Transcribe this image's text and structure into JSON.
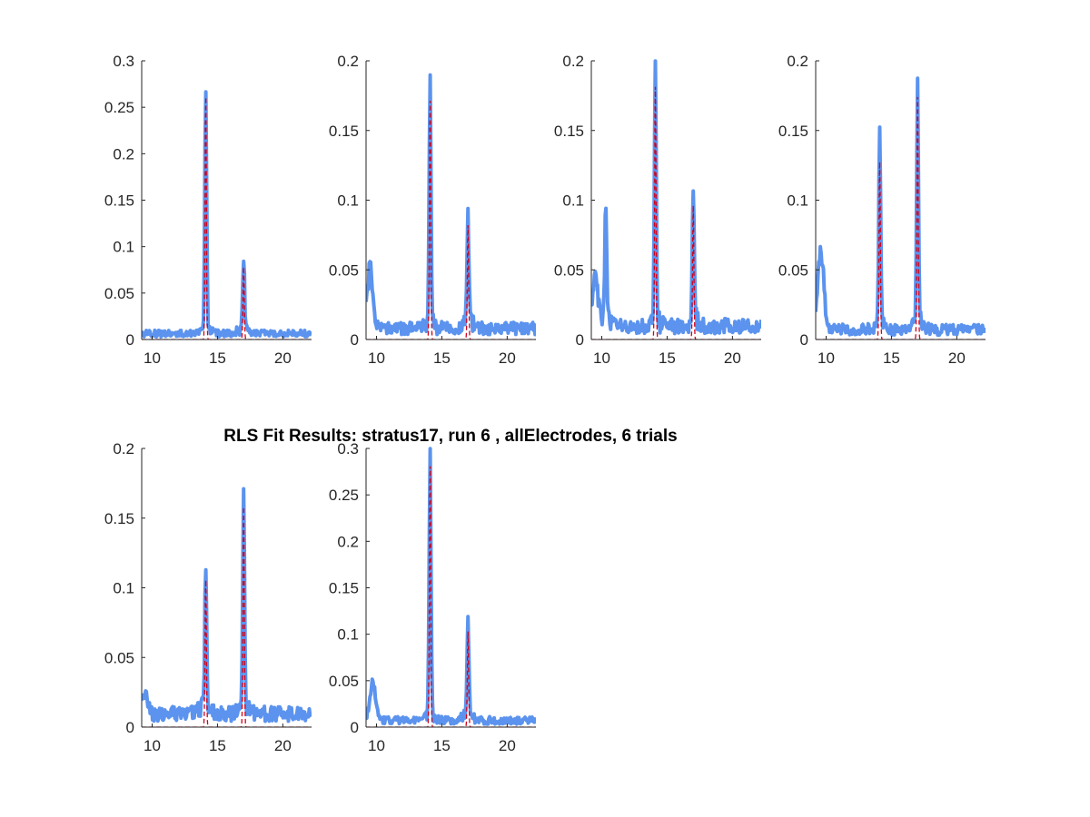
{
  "figure": {
    "title": "RLS Fit Results: stratus17, run 6 , allElectrodes, 6 trials"
  },
  "colors": {
    "measured": "#5b93ee",
    "fit": "#d0021b",
    "axis": "#262626"
  },
  "chart_data": [
    {
      "type": "line",
      "xlim": [
        9.2,
        22.2
      ],
      "ylim": [
        0,
        0.3
      ],
      "xticks": [
        10,
        15,
        20
      ],
      "xtick_labels": [
        "10",
        "15",
        "20"
      ],
      "yticks": [
        0,
        0.05,
        0.1,
        0.15,
        0.2,
        0.25,
        0.3
      ],
      "ytick_labels": [
        "0",
        "0.05",
        "0.1",
        "0.15",
        "0.2",
        "0.25",
        "0.3"
      ],
      "peaks": [
        {
          "x": 14.1,
          "y": 0.258
        },
        {
          "x": 17.0,
          "y": 0.076
        }
      ],
      "fit_peaks": [
        {
          "x": 14.1,
          "y": 0.262
        },
        {
          "x": 17.0,
          "y": 0.078
        }
      ],
      "noise_level": 0.008,
      "low_freq_bump": null,
      "grid": false
    },
    {
      "type": "line",
      "xlim": [
        9.2,
        22.2
      ],
      "ylim": [
        0,
        0.2
      ],
      "xticks": [
        10,
        15,
        20
      ],
      "xtick_labels": [
        "10",
        "15",
        "20"
      ],
      "yticks": [
        0,
        0.05,
        0.1,
        0.15,
        0.2
      ],
      "ytick_labels": [
        "0",
        "0.05",
        "0.1",
        "0.15",
        "0.2"
      ],
      "peaks": [
        {
          "x": 14.1,
          "y": 0.169
        },
        {
          "x": 17.0,
          "y": 0.079
        }
      ],
      "fit_peaks": [
        {
          "x": 14.1,
          "y": 0.172
        },
        {
          "x": 17.0,
          "y": 0.082
        }
      ],
      "noise_level": 0.01,
      "low_freq_bump": {
        "x": 9.5,
        "y": 0.047
      },
      "grid": false
    },
    {
      "type": "line",
      "xlim": [
        9.2,
        22.2
      ],
      "ylim": [
        0,
        0.2
      ],
      "xticks": [
        10,
        15,
        20
      ],
      "xtick_labels": [
        "10",
        "15",
        "20"
      ],
      "yticks": [
        0,
        0.05,
        0.1,
        0.15,
        0.2
      ],
      "ytick_labels": [
        "0",
        "0.05",
        "0.1",
        "0.15",
        "0.2"
      ],
      "peaks": [
        {
          "x": 10.3,
          "y": 0.086
        },
        {
          "x": 14.1,
          "y": 0.178
        },
        {
          "x": 17.0,
          "y": 0.095
        }
      ],
      "fit_peaks": [
        {
          "x": 14.1,
          "y": 0.182
        },
        {
          "x": 17.0,
          "y": 0.096
        }
      ],
      "noise_level": 0.012,
      "low_freq_bump": {
        "x": 9.5,
        "y": 0.04
      },
      "grid": false
    },
    {
      "type": "line",
      "xlim": [
        9.2,
        22.2
      ],
      "ylim": [
        0,
        0.2
      ],
      "xticks": [
        10,
        15,
        20
      ],
      "xtick_labels": [
        "10",
        "15",
        "20"
      ],
      "yticks": [
        0,
        0.05,
        0.1,
        0.15,
        0.2
      ],
      "ytick_labels": [
        "0",
        "0.05",
        "0.1",
        "0.15",
        "0.2"
      ],
      "peaks": [
        {
          "x": 14.1,
          "y": 0.136
        },
        {
          "x": 17.0,
          "y": 0.171
        }
      ],
      "fit_peaks": [
        {
          "x": 14.1,
          "y": 0.128
        },
        {
          "x": 17.0,
          "y": 0.174
        }
      ],
      "noise_level": 0.009,
      "low_freq_bump": {
        "x": 9.6,
        "y": 0.066
      },
      "grid": false
    },
    {
      "type": "line",
      "xlim": [
        9.2,
        22.2
      ],
      "ylim": [
        0,
        0.2
      ],
      "xticks": [
        10,
        15,
        20
      ],
      "xtick_labels": [
        "10",
        "15",
        "20"
      ],
      "yticks": [
        0,
        0.05,
        0.1,
        0.15,
        0.2
      ],
      "ytick_labels": [
        "0",
        "0.05",
        "0.1",
        "0.15",
        "0.2"
      ],
      "peaks": [
        {
          "x": 14.1,
          "y": 0.103
        },
        {
          "x": 17.0,
          "y": 0.156
        }
      ],
      "fit_peaks": [
        {
          "x": 14.1,
          "y": 0.106
        },
        {
          "x": 17.0,
          "y": 0.158
        }
      ],
      "noise_level": 0.012,
      "low_freq_bump": {
        "x": 9.4,
        "y": 0.016
      },
      "grid": false
    },
    {
      "type": "line",
      "xlim": [
        9.2,
        22.2
      ],
      "ylim": [
        0,
        0.3
      ],
      "xticks": [
        10,
        15,
        20
      ],
      "xtick_labels": [
        "10",
        "15",
        "20"
      ],
      "yticks": [
        0,
        0.05,
        0.1,
        0.15,
        0.2,
        0.25,
        0.3
      ],
      "ytick_labels": [
        "0",
        "0.05",
        "0.1",
        "0.15",
        "0.2",
        "0.25",
        "0.3"
      ],
      "peaks": [
        {
          "x": 14.1,
          "y": 0.279
        },
        {
          "x": 17.0,
          "y": 0.1
        }
      ],
      "fit_peaks": [
        {
          "x": 14.1,
          "y": 0.282
        },
        {
          "x": 17.0,
          "y": 0.103
        }
      ],
      "noise_level": 0.009,
      "low_freq_bump": {
        "x": 9.7,
        "y": 0.043
      },
      "grid": false
    }
  ]
}
